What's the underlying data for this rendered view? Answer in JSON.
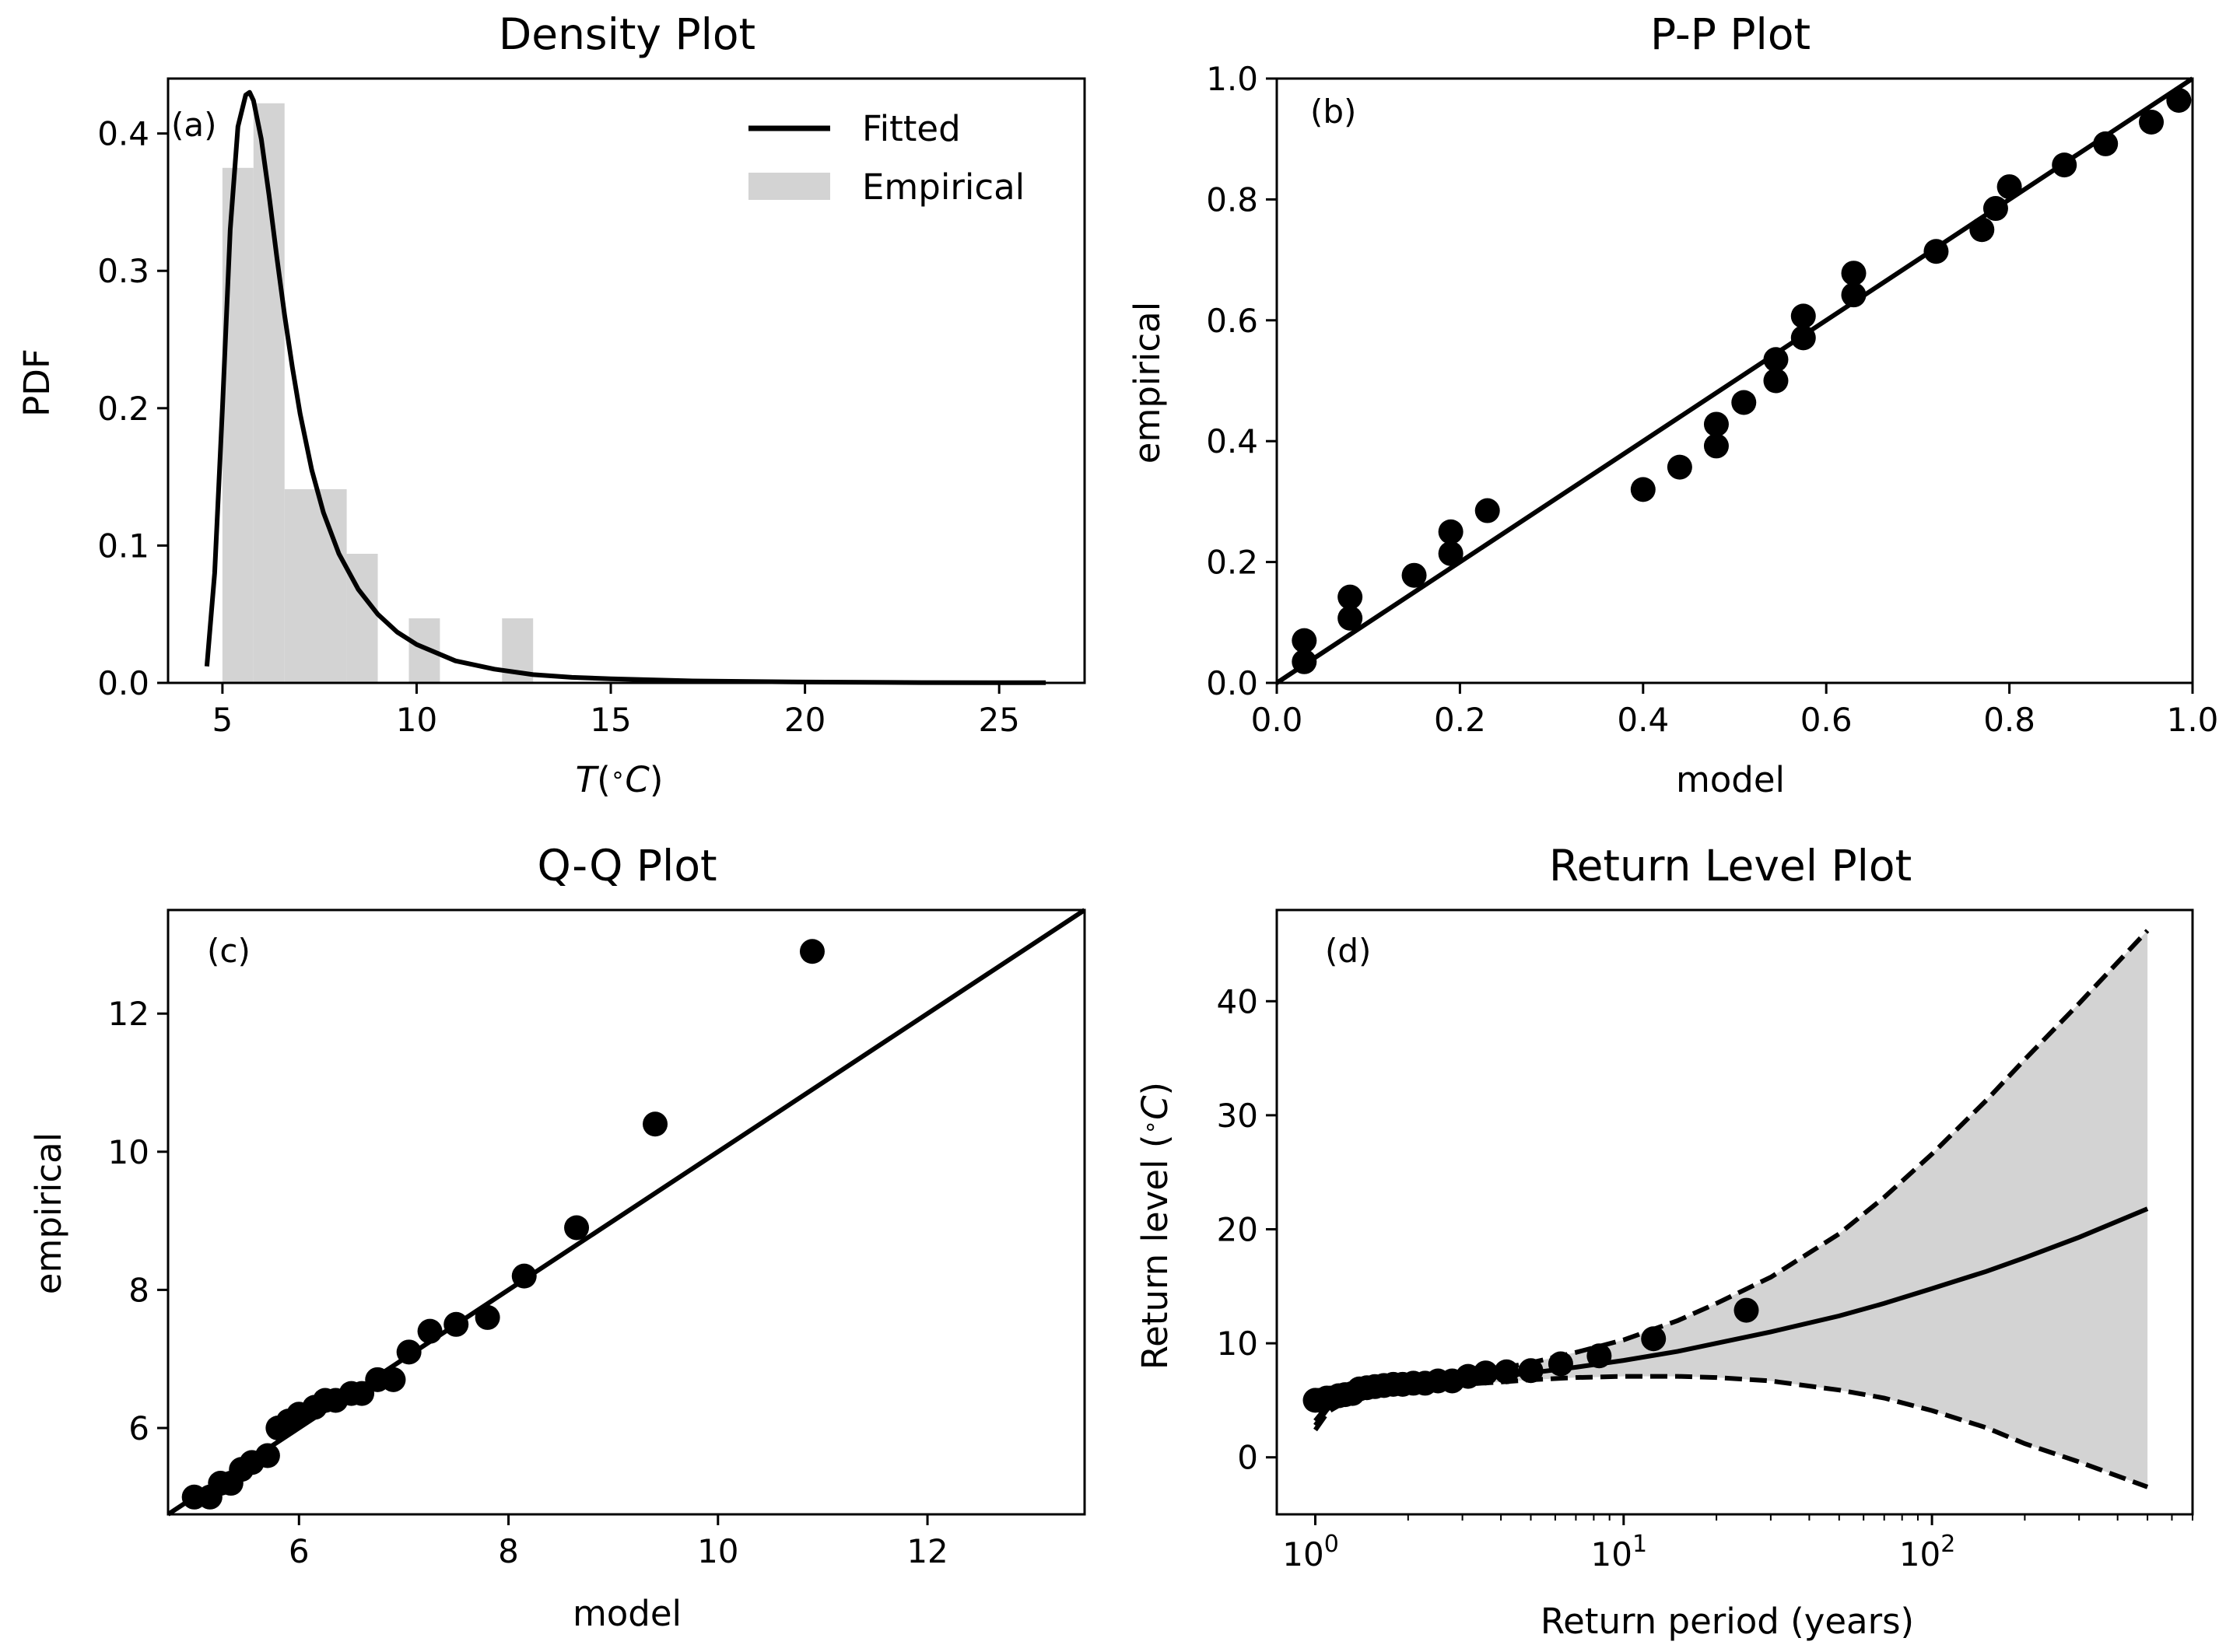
{
  "chart_data": [
    {
      "type": "histogram+line",
      "panel_label": "(a)",
      "title": "Density Plot",
      "xlabel": "T(°C)",
      "ylabel": "PDF",
      "xlim": [
        3.6,
        27.2
      ],
      "ylim": [
        0.0,
        0.44
      ],
      "xticks": [
        5,
        10,
        15,
        20,
        25
      ],
      "yticks": [
        0.0,
        0.1,
        0.2,
        0.3,
        0.4
      ],
      "legend": [
        "Fitted",
        "Empirical"
      ],
      "legend_position": "top-right",
      "histogram": {
        "name": "Empirical",
        "bins": [
          [
            5.0,
            5.8,
            0.375
          ],
          [
            5.8,
            6.6,
            0.422
          ],
          [
            6.6,
            8.2,
            0.141
          ],
          [
            8.2,
            9.0,
            0.094
          ],
          [
            9.8,
            10.6,
            0.047
          ],
          [
            12.2,
            13.0,
            0.047
          ]
        ]
      },
      "fitted": {
        "name": "Fitted",
        "x": [
          4.6,
          4.8,
          5.0,
          5.2,
          5.4,
          5.6,
          5.7,
          5.8,
          6.0,
          6.2,
          6.4,
          6.6,
          6.8,
          7.0,
          7.3,
          7.6,
          8.0,
          8.5,
          9.0,
          9.5,
          10.0,
          11.0,
          12.0,
          13.0,
          14.0,
          15.0,
          17.0,
          20.0,
          23.0,
          26.2
        ],
        "y": [
          0.012,
          0.08,
          0.2,
          0.33,
          0.405,
          0.428,
          0.43,
          0.424,
          0.396,
          0.355,
          0.31,
          0.268,
          0.23,
          0.196,
          0.155,
          0.124,
          0.094,
          0.068,
          0.05,
          0.037,
          0.028,
          0.016,
          0.01,
          0.006,
          0.004,
          0.003,
          0.0015,
          0.0006,
          0.0002,
          0.0001
        ]
      }
    },
    {
      "type": "scatter+line",
      "panel_label": "(b)",
      "title": "P-P Plot",
      "xlabel": "model",
      "ylabel": "empirical",
      "xlim": [
        0.0,
        1.0
      ],
      "ylim": [
        0.0,
        1.0
      ],
      "xticks": [
        "0.0",
        "0.2",
        "0.4",
        "0.6",
        "0.8",
        "1.0"
      ],
      "yticks": [
        "0.0",
        "0.2",
        "0.4",
        "0.6",
        "0.8",
        "1.0"
      ],
      "reference_line": [
        [
          0,
          0
        ],
        [
          1,
          1
        ]
      ],
      "points": [
        [
          0.03,
          0.035
        ],
        [
          0.03,
          0.07
        ],
        [
          0.08,
          0.107
        ],
        [
          0.08,
          0.142
        ],
        [
          0.15,
          0.178
        ],
        [
          0.19,
          0.214
        ],
        [
          0.19,
          0.25
        ],
        [
          0.23,
          0.285
        ],
        [
          0.4,
          0.32
        ],
        [
          0.44,
          0.357
        ],
        [
          0.48,
          0.392
        ],
        [
          0.48,
          0.428
        ],
        [
          0.51,
          0.464
        ],
        [
          0.545,
          0.5
        ],
        [
          0.545,
          0.535
        ],
        [
          0.575,
          0.571
        ],
        [
          0.575,
          0.607
        ],
        [
          0.63,
          0.642
        ],
        [
          0.63,
          0.678
        ],
        [
          0.72,
          0.714
        ],
        [
          0.77,
          0.75
        ],
        [
          0.785,
          0.785
        ],
        [
          0.8,
          0.821
        ],
        [
          0.86,
          0.857
        ],
        [
          0.905,
          0.892
        ],
        [
          0.955,
          0.928
        ],
        [
          0.985,
          0.964
        ]
      ]
    },
    {
      "type": "scatter+line",
      "panel_label": "(c)",
      "title": "Q-Q Plot",
      "xlabel": "model",
      "ylabel": "empirical",
      "xlim": [
        4.75,
        13.5
      ],
      "ylim": [
        4.75,
        13.5
      ],
      "xticks": [
        6,
        8,
        10,
        12
      ],
      "yticks": [
        6,
        8,
        10,
        12
      ],
      "reference_line": [
        [
          4.75,
          4.75
        ],
        [
          13.5,
          13.5
        ]
      ],
      "points": [
        [
          5.0,
          5.0
        ],
        [
          5.15,
          5.0
        ],
        [
          5.25,
          5.2
        ],
        [
          5.35,
          5.2
        ],
        [
          5.45,
          5.4
        ],
        [
          5.55,
          5.5
        ],
        [
          5.7,
          5.6
        ],
        [
          5.8,
          6.0
        ],
        [
          5.9,
          6.1
        ],
        [
          6.0,
          6.2
        ],
        [
          6.15,
          6.3
        ],
        [
          6.25,
          6.4
        ],
        [
          6.35,
          6.4
        ],
        [
          6.5,
          6.5
        ],
        [
          6.6,
          6.5
        ],
        [
          6.75,
          6.7
        ],
        [
          6.9,
          6.7
        ],
        [
          7.05,
          7.1
        ],
        [
          7.25,
          7.4
        ],
        [
          7.5,
          7.5
        ],
        [
          7.8,
          7.6
        ],
        [
          8.15,
          8.2
        ],
        [
          8.65,
          8.9
        ],
        [
          9.4,
          10.4
        ],
        [
          10.9,
          12.9
        ]
      ]
    },
    {
      "type": "line+scatter+band",
      "panel_label": "(d)",
      "title": "Return Level Plot",
      "xlabel": "Return period (years)",
      "ylabel": "Return level (°C)",
      "xscale": "log",
      "xlim": [
        0.75,
        700
      ],
      "ylim": [
        -5,
        48
      ],
      "xticks": [
        1,
        10,
        100
      ],
      "xtick_labels": [
        [
          "10",
          "0"
        ],
        [
          "10",
          "1"
        ],
        [
          "10",
          "2"
        ]
      ],
      "yticks": [
        0,
        10,
        20,
        30,
        40
      ],
      "return_period": [
        1.0,
        1.1,
        1.2,
        1.4,
        1.7,
        2.0,
        2.5,
        3.0,
        4.0,
        5.0,
        7.0,
        10.0,
        15.0,
        20.0,
        30.0,
        50.0,
        70.0,
        100.0,
        150.0,
        200.0,
        300.0,
        500.0
      ],
      "return_level": [
        2.8,
        4.3,
        4.9,
        5.5,
        5.9,
        6.2,
        6.5,
        6.8,
        7.1,
        7.4,
        7.9,
        8.5,
        9.3,
        10.0,
        11.0,
        12.4,
        13.5,
        14.8,
        16.3,
        17.5,
        19.3,
        21.8
      ],
      "upper_ci": [
        3.2,
        4.6,
        5.2,
        5.8,
        6.2,
        6.5,
        6.9,
        7.2,
        7.8,
        8.3,
        9.2,
        10.3,
        12.0,
        13.5,
        15.8,
        19.6,
        22.8,
        26.6,
        31.3,
        34.9,
        39.8,
        46.2
      ],
      "lower_ci": [
        2.4,
        4.0,
        4.6,
        5.2,
        5.6,
        5.9,
        6.2,
        6.4,
        6.6,
        6.8,
        7.0,
        7.1,
        7.1,
        7.0,
        6.7,
        5.9,
        5.2,
        4.1,
        2.6,
        1.2,
        -0.4,
        -2.6
      ],
      "points": [
        [
          1.0,
          5.0
        ],
        [
          1.04,
          5.0
        ],
        [
          1.09,
          5.2
        ],
        [
          1.13,
          5.2
        ],
        [
          1.19,
          5.4
        ],
        [
          1.25,
          5.5
        ],
        [
          1.32,
          5.6
        ],
        [
          1.39,
          6.0
        ],
        [
          1.47,
          6.1
        ],
        [
          1.56,
          6.2
        ],
        [
          1.67,
          6.3
        ],
        [
          1.79,
          6.4
        ],
        [
          1.92,
          6.4
        ],
        [
          2.08,
          6.5
        ],
        [
          2.27,
          6.5
        ],
        [
          2.5,
          6.7
        ],
        [
          2.78,
          6.7
        ],
        [
          3.13,
          7.1
        ],
        [
          3.57,
          7.4
        ],
        [
          4.17,
          7.5
        ],
        [
          5.0,
          7.6
        ],
        [
          6.25,
          8.2
        ],
        [
          8.33,
          8.9
        ],
        [
          12.5,
          10.4
        ],
        [
          25.0,
          12.9
        ]
      ]
    }
  ]
}
